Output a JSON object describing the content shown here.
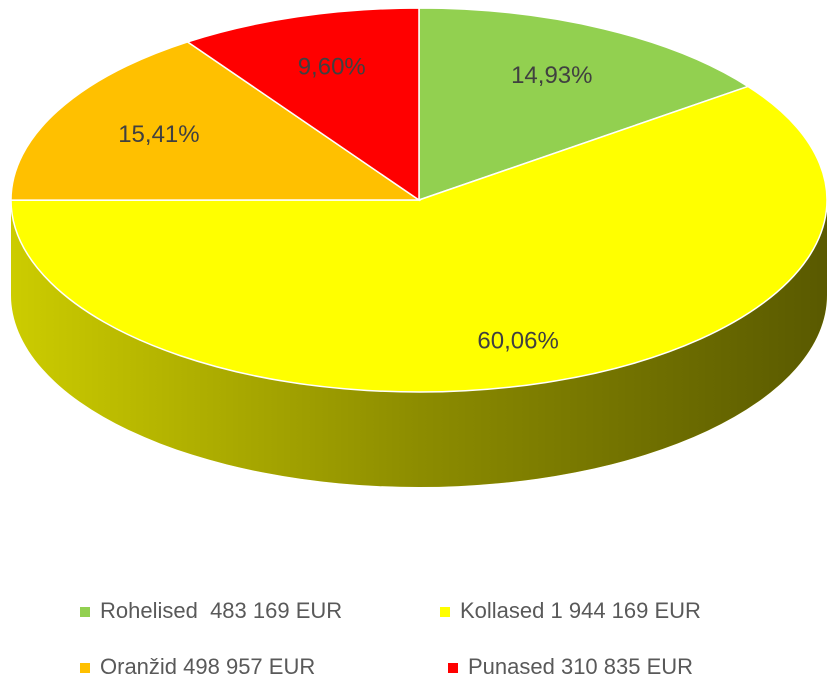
{
  "chart_data": {
    "type": "pie",
    "categories": [
      "Rohelised  483 169 EUR",
      "Kollased 1 944 169 EUR",
      "Oranžid 498 957 EUR",
      "Punased 310 835 EUR"
    ],
    "values": [
      14.93,
      60.06,
      15.41,
      9.6
    ],
    "value_labels": [
      "14,93%",
      "60,06%",
      "15,41%",
      "9,60%"
    ],
    "colors": [
      "#92d050",
      "#ffff00",
      "#ffc000",
      "#ff0000"
    ],
    "legend": "bottom"
  }
}
